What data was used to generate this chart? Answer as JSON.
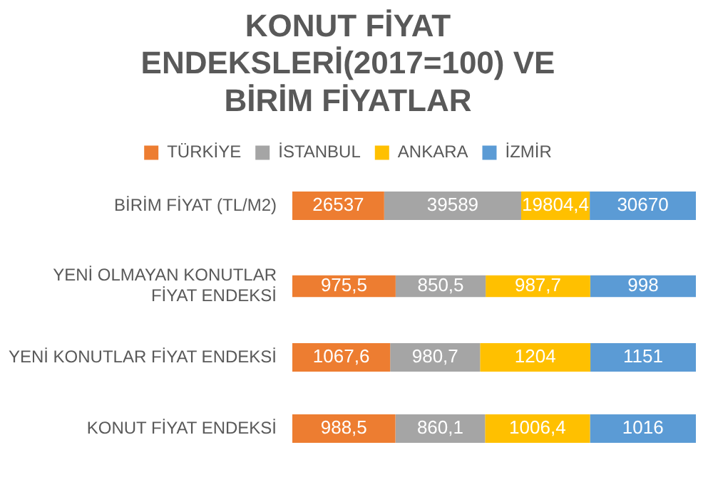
{
  "chart_data": [
    {
      "type": "bar",
      "title": "KONUT FİYAT ENDEKSLERİ(2017=100) VE BİRİM FİYATLAR",
      "orientation": "horizontal",
      "stacked": true,
      "legend": "top",
      "tick_labels": "y",
      "categories": [
        "BİRİM FİYAT (TL/M2)"
      ],
      "xlim": [
        0,
        116600.4
      ],
      "series": [
        {
          "name": "TÜRKİYE",
          "color": "#ed7d31",
          "values": [
            26537
          ],
          "value_labels": [
            "26537"
          ]
        },
        {
          "name": "İSTANBUL",
          "color": "#a5a5a5",
          "values": [
            39589
          ],
          "value_labels": [
            "39589"
          ]
        },
        {
          "name": "ANKARA",
          "color": "#ffc000",
          "values": [
            19804.4
          ],
          "value_labels": [
            "19804,4"
          ]
        },
        {
          "name": "İZMİR",
          "color": "#5b9bd5",
          "values": [
            30670
          ],
          "value_labels": [
            "30670"
          ]
        }
      ]
    },
    {
      "type": "bar",
      "orientation": "horizontal",
      "stacked": true,
      "tick_labels": "y",
      "categories": [
        "YENİ OLMAYAN KONUTLAR FİYAT ENDEKSİ"
      ],
      "xlim": [
        0,
        3811.7
      ],
      "series": [
        {
          "color": "#ed7d31",
          "values": [
            975.5
          ],
          "value_labels": [
            "975,5"
          ]
        },
        {
          "color": "#a5a5a5",
          "values": [
            850.5
          ],
          "value_labels": [
            "850,5"
          ]
        },
        {
          "color": "#ffc000",
          "values": [
            987.7
          ],
          "value_labels": [
            "987,7"
          ]
        },
        {
          "color": "#5b9bd5",
          "values": [
            998
          ],
          "value_labels": [
            "998"
          ]
        }
      ]
    },
    {
      "type": "bar",
      "orientation": "horizontal",
      "stacked": true,
      "tick_labels": "y",
      "categories": [
        "YENİ KONUTLAR FİYAT ENDEKSİ"
      ],
      "xlim": [
        0,
        4403.3
      ],
      "series": [
        {
          "color": "#ed7d31",
          "values": [
            1067.6
          ],
          "value_labels": [
            "1067,6"
          ]
        },
        {
          "color": "#a5a5a5",
          "values": [
            980.7
          ],
          "value_labels": [
            "980,7"
          ]
        },
        {
          "color": "#ffc000",
          "values": [
            1204
          ],
          "value_labels": [
            "1204"
          ]
        },
        {
          "color": "#5b9bd5",
          "values": [
            1151
          ],
          "value_labels": [
            "1151"
          ]
        }
      ]
    },
    {
      "type": "bar",
      "orientation": "horizontal",
      "stacked": true,
      "tick_labels": "y",
      "categories": [
        "KONUT FİYAT ENDEKSİ"
      ],
      "xlim": [
        0,
        3871
      ],
      "series": [
        {
          "color": "#ed7d31",
          "values": [
            988.5
          ],
          "value_labels": [
            "988,5"
          ]
        },
        {
          "color": "#a5a5a5",
          "values": [
            860.1
          ],
          "value_labels": [
            "860,1"
          ]
        },
        {
          "color": "#ffc000",
          "values": [
            1006.4
          ],
          "value_labels": [
            "1006,4"
          ]
        },
        {
          "color": "#5b9bd5",
          "values": [
            1016
          ],
          "value_labels": [
            "1016"
          ]
        }
      ]
    }
  ]
}
